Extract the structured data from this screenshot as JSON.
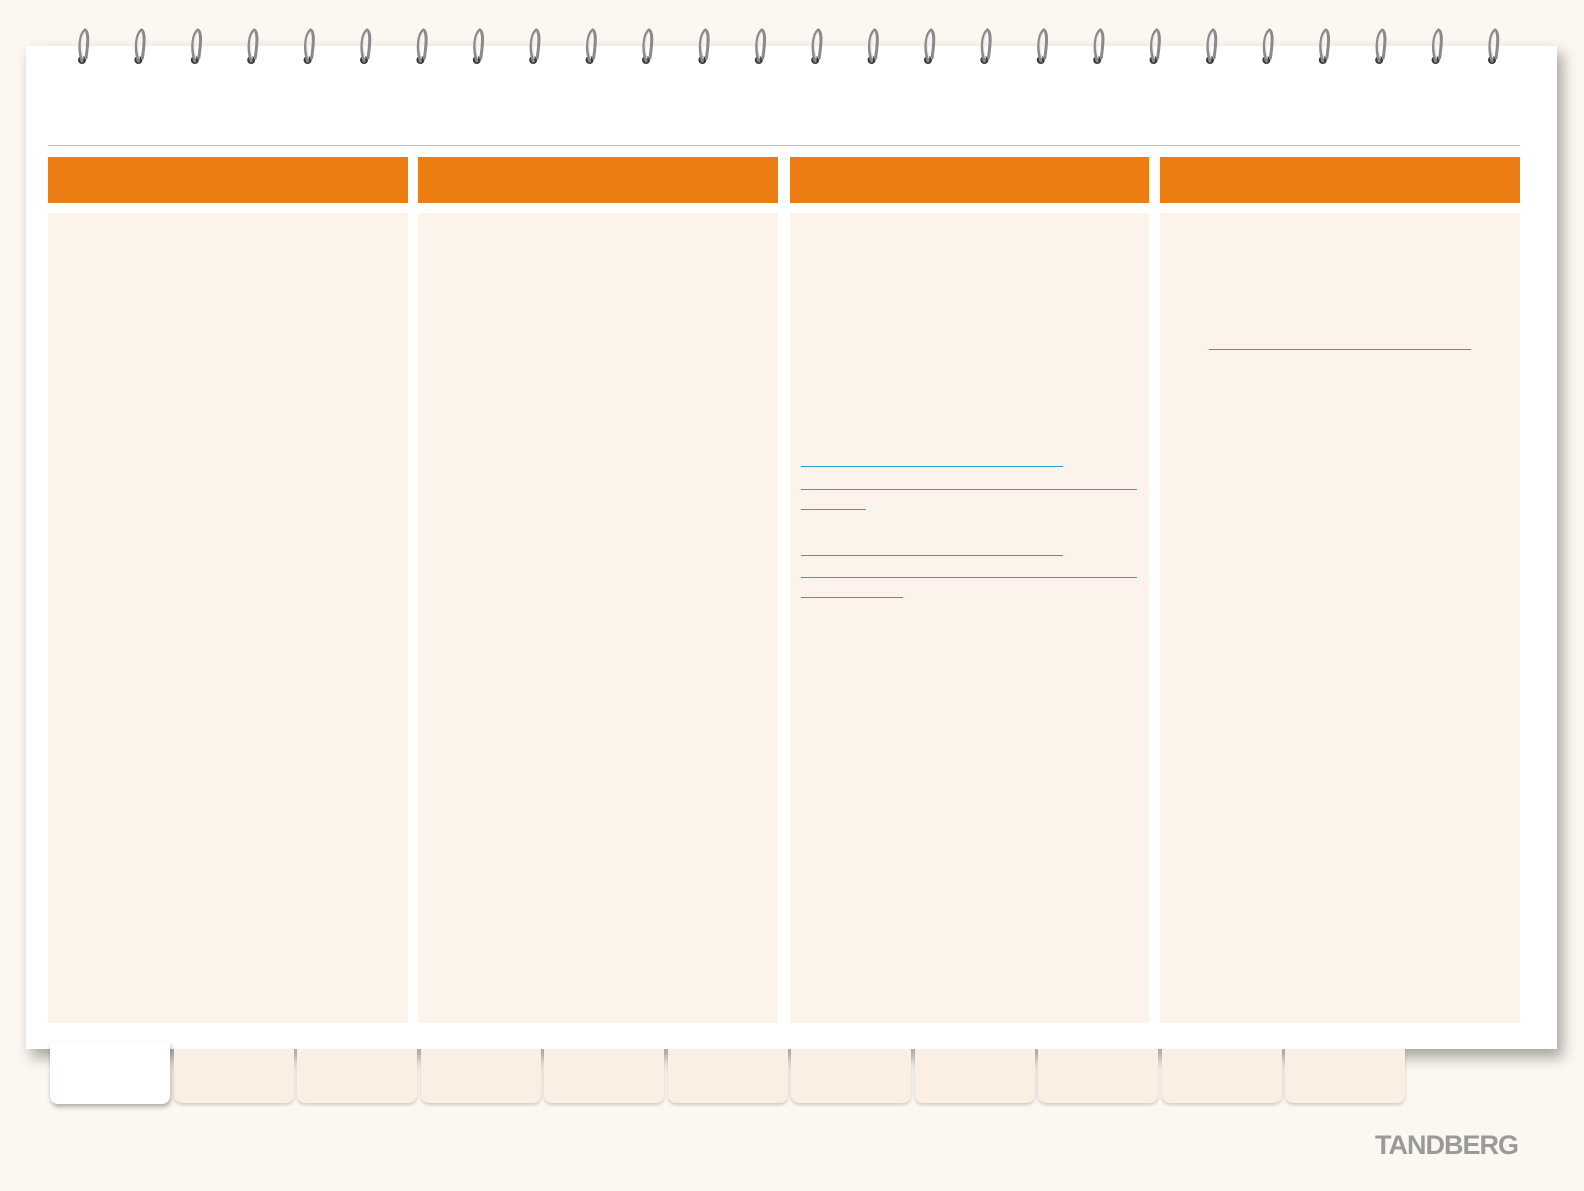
{
  "brand": {
    "logo_text": "TANDBERG",
    "logo_color": "#9a9a9a"
  },
  "colors": {
    "accent": "#eb7d13",
    "column_background": "#fcf3ea",
    "link": "#2a9fd8",
    "rule": "#e8b68a"
  },
  "columns": [
    {
      "header": "",
      "links": []
    },
    {
      "header": "",
      "links": []
    },
    {
      "header": "",
      "links": []
    },
    {
      "header": "",
      "links": []
    }
  ],
  "tabs": [
    {
      "label": "",
      "active": true
    },
    {
      "label": "",
      "active": false
    },
    {
      "label": "",
      "active": false
    },
    {
      "label": "",
      "active": false
    },
    {
      "label": "",
      "active": false
    },
    {
      "label": "",
      "active": false
    },
    {
      "label": "",
      "active": false
    },
    {
      "label": "",
      "active": false
    },
    {
      "label": "",
      "active": false
    },
    {
      "label": "",
      "active": false
    },
    {
      "label": "",
      "active": false
    }
  ],
  "binding": {
    "icon": "spiral-binding-ring-icon"
  }
}
